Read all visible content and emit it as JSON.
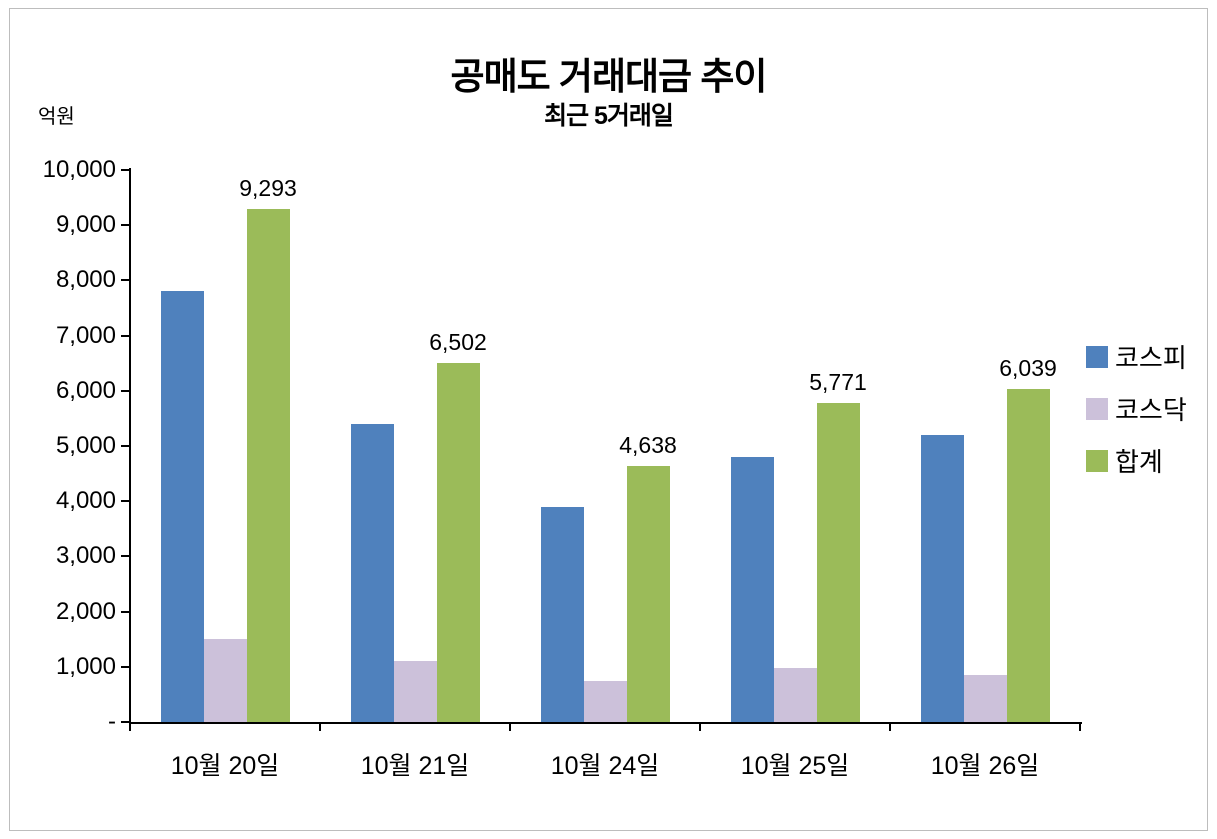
{
  "title": "공매도 거래대금 추이",
  "subtitle": "최근 5거래일",
  "unit_label": "억원",
  "colors": {
    "kospi": "#4F81BD",
    "kosdaq": "#CCC1DA",
    "total": "#9BBB59"
  },
  "legend": [
    {
      "label": "코스피",
      "color": "#4F81BD"
    },
    {
      "label": "코스닥",
      "color": "#CCC1DA"
    },
    {
      "label": "합계",
      "color": "#9BBB59"
    }
  ],
  "chart_data": {
    "type": "bar",
    "title": "공매도 거래대금 추이",
    "subtitle": "최근 5거래일",
    "ylabel": "억원",
    "categories": [
      "10월 20일",
      "10월 21일",
      "10월 24일",
      "10월 25일",
      "10월 26일"
    ],
    "series": [
      {
        "name": "코스피",
        "color": "#4F81BD",
        "values": [
          7800,
          5400,
          3900,
          4800,
          5200
        ]
      },
      {
        "name": "코스닥",
        "color": "#CCC1DA",
        "values": [
          1500,
          1100,
          750,
          980,
          850
        ]
      },
      {
        "name": "합계",
        "color": "#9BBB59",
        "values": [
          9293,
          6502,
          4638,
          5771,
          6039
        ],
        "data_labels": [
          "9,293",
          "6,502",
          "4,638",
          "5,771",
          "6,039"
        ]
      }
    ],
    "ylim": [
      0,
      10000
    ],
    "ytick_step": 1000,
    "ytick_labels": [
      "-",
      "1,000",
      "2,000",
      "3,000",
      "4,000",
      "5,000",
      "6,000",
      "7,000",
      "8,000",
      "9,000",
      "10,000"
    ],
    "grid": false,
    "legend_position": "right"
  }
}
